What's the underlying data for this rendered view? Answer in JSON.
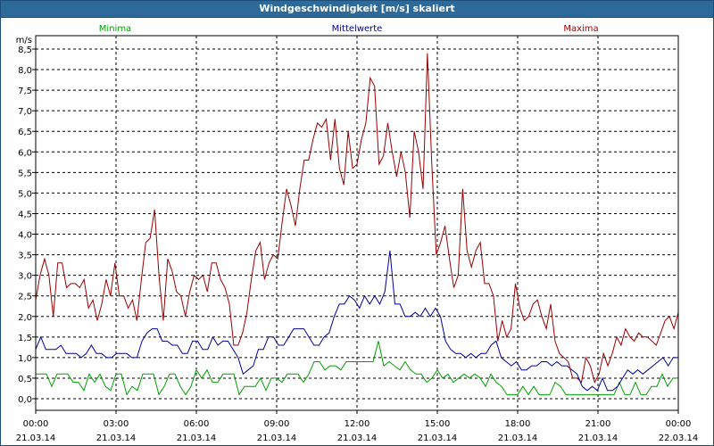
{
  "window": {
    "title": "Windgeschwindigkeit [m/s] skaliert"
  },
  "colors": {
    "minima": "#00a000",
    "mittelwerte": "#000099",
    "maxima": "#990000",
    "grid": "#000000",
    "titlebar": "#2e6a99"
  },
  "chart_data": {
    "type": "line",
    "title": "Windgeschwindigkeit [m/s] skaliert",
    "ylabel": "m/s",
    "xlabel": "",
    "ylim": [
      0,
      8.5
    ],
    "xlim": [
      0,
      24
    ],
    "grid": true,
    "legend_placement": "top",
    "y_ticks": [
      "0,0",
      "0,5",
      "1,0",
      "1,5",
      "2,0",
      "2,5",
      "3,0",
      "3,5",
      "4,0",
      "4,5",
      "5,0",
      "5,5",
      "6,0",
      "6,5",
      "7,0",
      "7,5",
      "8,0",
      "8,5"
    ],
    "x_ticks": [
      {
        "time": "00:00",
        "date": "21.03.14"
      },
      {
        "time": "03:00",
        "date": "21.03.14"
      },
      {
        "time": "06:00",
        "date": "21.03.14"
      },
      {
        "time": "09:00",
        "date": "21.03.14"
      },
      {
        "time": "12:00",
        "date": "21.03.14"
      },
      {
        "time": "15:00",
        "date": "21.03.14"
      },
      {
        "time": "18:00",
        "date": "21.03.14"
      },
      {
        "time": "21:00",
        "date": "21.03.14"
      },
      {
        "time": "00:00",
        "date": "22.03.14"
      }
    ],
    "series": [
      {
        "name": "Minima",
        "color": "#00a000",
        "values": [
          0.6,
          0.6,
          0.6,
          0.3,
          0.6,
          0.6,
          0.6,
          0.4,
          0.4,
          0.2,
          0.6,
          0.4,
          0.6,
          0.3,
          0.2,
          0.6,
          0.6,
          0.1,
          0.3,
          0.2,
          0.6,
          0.6,
          0.6,
          0.1,
          0.3,
          0.6,
          0.6,
          0.3,
          0.1,
          0.3,
          0.7,
          0.5,
          0.7,
          0.4,
          0.4,
          0.6,
          0.6,
          0.6,
          0.1,
          0.3,
          0.3,
          0.3,
          0.5,
          0.2,
          0.5,
          0.5,
          0.4,
          0.6,
          0.6,
          0.6,
          0.4,
          0.6,
          0.9,
          0.9,
          0.7,
          0.8,
          0.8,
          0.7,
          0.9,
          0.9,
          0.9,
          0.9,
          0.9,
          0.9,
          1.4,
          0.8,
          0.9,
          0.8,
          0.7,
          0.9,
          0.7,
          0.6,
          0.6,
          0.4,
          0.5,
          0.7,
          0.5,
          0.6,
          0.4,
          0.5,
          0.6,
          0.5,
          0.6,
          0.5,
          0.3,
          0.6,
          0.4,
          0.3,
          0.1,
          0.1,
          0.1,
          0.3,
          0.1,
          0.3,
          0.1,
          0.1,
          0.1,
          0.4,
          0.3,
          0.1,
          0.1,
          0.1,
          0.1,
          0.1,
          0.1,
          0.1,
          0.1,
          0.1,
          0.1,
          0.4,
          0.1,
          0.1,
          0.4,
          0.1,
          0.1,
          0.3,
          0.3,
          0.6,
          0.3,
          0.5,
          0.5
        ]
      },
      {
        "name": "Mittelwerte",
        "color": "#000099",
        "values": [
          1.2,
          1.5,
          1.2,
          1.2,
          1.2,
          1.3,
          1.1,
          1.1,
          1.1,
          1.0,
          1.1,
          1.3,
          1.1,
          1.1,
          1.0,
          1.0,
          1.1,
          1.1,
          1.1,
          1.0,
          1.0,
          1.4,
          1.6,
          1.7,
          1.7,
          1.4,
          1.4,
          1.3,
          1.3,
          1.1,
          1.1,
          1.4,
          1.4,
          1.2,
          1.2,
          1.5,
          1.3,
          1.4,
          1.4,
          1.2,
          1.0,
          0.6,
          0.7,
          0.8,
          1.2,
          1.2,
          1.5,
          1.5,
          1.3,
          1.3,
          1.5,
          1.7,
          1.7,
          1.7,
          1.5,
          1.3,
          1.3,
          1.5,
          1.6,
          2.0,
          2.3,
          2.3,
          2.5,
          2.4,
          2.2,
          2.5,
          2.3,
          2.5,
          2.3,
          2.6,
          3.6,
          2.3,
          2.3,
          2.0,
          2.0,
          2.1,
          2.0,
          2.2,
          2.0,
          2.2,
          2.0,
          1.4,
          1.2,
          1.1,
          1.1,
          1.0,
          1.1,
          1.0,
          1.1,
          1.1,
          1.3,
          1.4,
          1.0,
          0.9,
          0.8,
          0.9,
          0.7,
          0.7,
          0.8,
          0.8,
          0.9,
          0.9,
          0.8,
          0.9,
          0.8,
          0.8,
          0.7,
          0.6,
          0.3,
          0.2,
          0.3,
          0.2,
          0.5,
          0.2,
          0.2,
          0.3,
          0.5,
          0.7,
          0.6,
          0.7,
          0.6,
          0.7,
          0.8,
          0.9,
          1.0,
          0.8,
          1.0,
          1.0
        ]
      },
      {
        "name": "Maxima",
        "color": "#990000",
        "values": [
          2.4,
          3.0,
          3.4,
          3.0,
          2.0,
          3.3,
          3.3,
          2.7,
          2.8,
          2.8,
          2.7,
          2.9,
          2.2,
          2.4,
          1.9,
          2.3,
          2.9,
          2.5,
          3.3,
          2.5,
          2.5,
          2.2,
          2.4,
          1.9,
          2.9,
          3.8,
          3.9,
          4.6,
          3.0,
          1.9,
          3.4,
          3.1,
          2.6,
          2.5,
          2.0,
          2.6,
          3.0,
          2.9,
          3.0,
          2.6,
          3.3,
          3.3,
          2.9,
          2.7,
          2.3,
          1.3,
          1.3,
          1.6,
          2.1,
          2.9,
          3.6,
          3.8,
          2.9,
          3.3,
          3.5,
          3.4,
          4.3,
          5.1,
          4.7,
          4.2,
          5.1,
          5.8,
          5.8,
          6.3,
          6.7,
          6.6,
          6.8,
          5.8,
          6.8,
          5.6,
          5.2,
          6.5,
          5.6,
          5.7,
          6.3,
          6.7,
          7.8,
          7.6,
          5.7,
          5.9,
          6.7,
          6.0,
          5.4,
          6.0,
          5.5,
          4.4,
          6.5,
          6.0,
          5.1,
          8.4,
          5.7,
          3.5,
          3.8,
          4.2,
          3.4,
          2.7,
          3.0,
          5.1,
          3.6,
          3.2,
          3.6,
          3.8,
          2.8,
          2.8,
          2.5,
          1.4,
          1.9,
          1.5,
          1.7,
          2.8,
          2.2,
          1.9,
          2.0,
          2.3,
          2.4,
          2.0,
          1.7,
          2.3,
          1.4,
          1.1,
          1.0,
          0.9,
          0.5,
          0.5,
          0.4,
          1.0,
          0.8,
          0.4,
          0.6,
          1.1,
          0.8,
          1.1,
          1.5,
          1.3,
          1.7,
          1.5,
          1.4,
          1.6,
          1.5,
          1.5,
          1.4,
          1.3,
          1.6,
          1.9,
          2.0,
          1.7,
          2.1
        ]
      }
    ]
  }
}
